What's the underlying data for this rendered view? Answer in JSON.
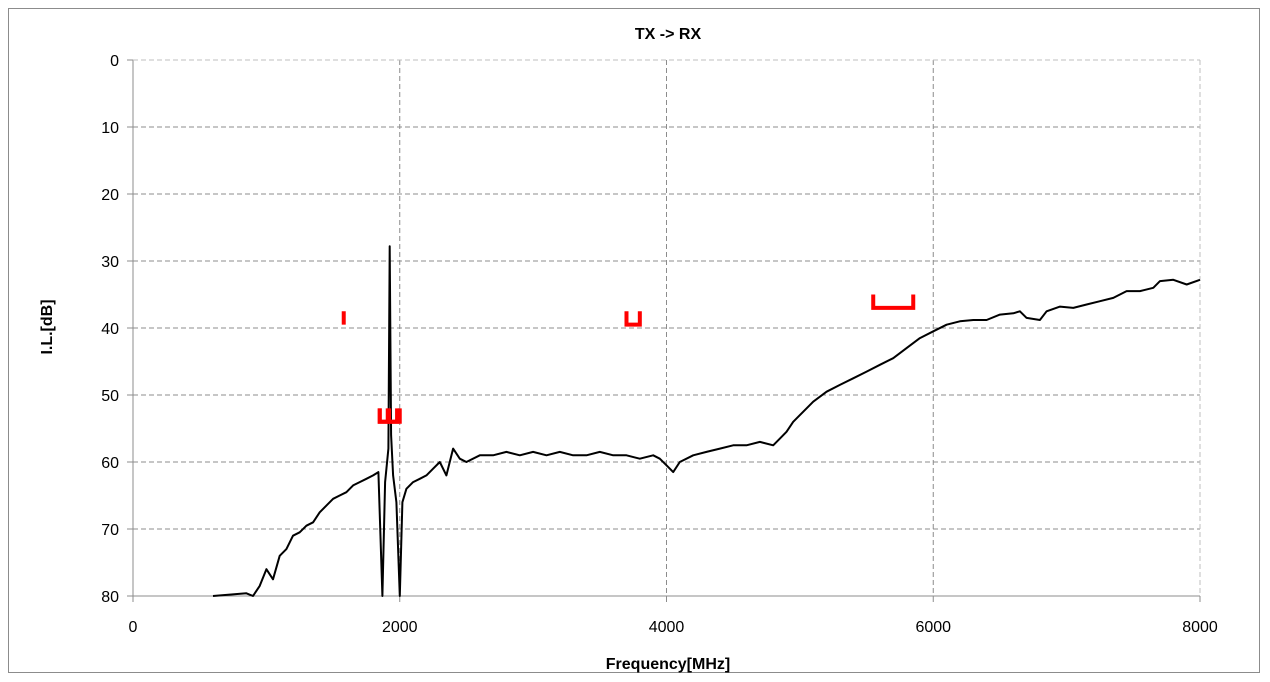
{
  "chart_data": {
    "type": "line",
    "title": "TX -> RX",
    "xlabel": "Frequency[MHz]",
    "ylabel": "I.L.[dB]",
    "xlim": [
      0,
      8000
    ],
    "ylim": [
      0,
      80
    ],
    "y_inverted": true,
    "grid": true,
    "x_ticks": [
      "0",
      "2000",
      "4000",
      "6000",
      "8000"
    ],
    "y_ticks": [
      "0",
      "10",
      "20",
      "30",
      "40",
      "50",
      "60",
      "70",
      "80"
    ],
    "series": [
      {
        "color": "#000000",
        "points": [
          [
            600,
            80
          ],
          [
            850,
            79.6
          ],
          [
            900,
            80
          ],
          [
            950,
            78.5
          ],
          [
            1000,
            76
          ],
          [
            1050,
            77.5
          ],
          [
            1100,
            74
          ],
          [
            1150,
            73
          ],
          [
            1200,
            71
          ],
          [
            1250,
            70.5
          ],
          [
            1300,
            69.5
          ],
          [
            1350,
            69
          ],
          [
            1400,
            67.5
          ],
          [
            1450,
            66.5
          ],
          [
            1500,
            65.5
          ],
          [
            1550,
            65
          ],
          [
            1600,
            64.5
          ],
          [
            1650,
            63.5
          ],
          [
            1700,
            63
          ],
          [
            1750,
            62.5
          ],
          [
            1800,
            62
          ],
          [
            1840,
            61.5
          ],
          [
            1870,
            80
          ],
          [
            1890,
            63
          ],
          [
            1915,
            58
          ],
          [
            1925,
            27.8
          ],
          [
            1935,
            56
          ],
          [
            1950,
            62
          ],
          [
            1975,
            66
          ],
          [
            2000,
            80
          ],
          [
            2020,
            66
          ],
          [
            2050,
            64
          ],
          [
            2100,
            63
          ],
          [
            2150,
            62.5
          ],
          [
            2200,
            62
          ],
          [
            2250,
            61
          ],
          [
            2300,
            60
          ],
          [
            2350,
            62
          ],
          [
            2400,
            58
          ],
          [
            2450,
            59.5
          ],
          [
            2500,
            60
          ],
          [
            2600,
            59
          ],
          [
            2700,
            59
          ],
          [
            2800,
            58.5
          ],
          [
            2900,
            59
          ],
          [
            3000,
            58.5
          ],
          [
            3100,
            59
          ],
          [
            3200,
            58.5
          ],
          [
            3300,
            59
          ],
          [
            3400,
            59
          ],
          [
            3500,
            58.5
          ],
          [
            3600,
            59
          ],
          [
            3700,
            59
          ],
          [
            3800,
            59.5
          ],
          [
            3900,
            59
          ],
          [
            3950,
            59.5
          ],
          [
            4000,
            60.5
          ],
          [
            4050,
            61.5
          ],
          [
            4100,
            60
          ],
          [
            4200,
            59
          ],
          [
            4300,
            58.5
          ],
          [
            4400,
            58
          ],
          [
            4500,
            57.5
          ],
          [
            4600,
            57.5
          ],
          [
            4700,
            57
          ],
          [
            4800,
            57.5
          ],
          [
            4850,
            56.5
          ],
          [
            4900,
            55.5
          ],
          [
            4950,
            54
          ],
          [
            5000,
            53
          ],
          [
            5050,
            52
          ],
          [
            5100,
            51
          ],
          [
            5200,
            49.5
          ],
          [
            5300,
            48.5
          ],
          [
            5400,
            47.5
          ],
          [
            5500,
            46.5
          ],
          [
            5600,
            45.5
          ],
          [
            5700,
            44.5
          ],
          [
            5800,
            43
          ],
          [
            5900,
            41.5
          ],
          [
            6000,
            40.5
          ],
          [
            6100,
            39.5
          ],
          [
            6200,
            39
          ],
          [
            6300,
            38.8
          ],
          [
            6400,
            38.8
          ],
          [
            6500,
            38
          ],
          [
            6600,
            37.8
          ],
          [
            6650,
            37.5
          ],
          [
            6700,
            38.5
          ],
          [
            6800,
            38.8
          ],
          [
            6850,
            37.5
          ],
          [
            6950,
            36.8
          ],
          [
            7050,
            37
          ],
          [
            7150,
            36.5
          ],
          [
            7250,
            36
          ],
          [
            7350,
            35.5
          ],
          [
            7450,
            34.5
          ],
          [
            7550,
            34.5
          ],
          [
            7650,
            34
          ],
          [
            7700,
            33
          ],
          [
            7800,
            32.8
          ],
          [
            7900,
            33.5
          ],
          [
            8000,
            32.8
          ]
        ]
      }
    ],
    "spec_markers": [
      {
        "color": "#ff0000",
        "x_start": 1580,
        "x_end": 1580,
        "y_bottom": 39.5,
        "height": 2
      },
      {
        "color": "#ff0000",
        "x_start": 1850,
        "x_end": 2000,
        "y_bottom": 54,
        "height": 2
      },
      {
        "color": "#ff0000",
        "x_start": 1850,
        "x_end": 1910,
        "y_bottom": 54,
        "height": 2
      },
      {
        "color": "#ff0000",
        "x_start": 1920,
        "x_end": 1980,
        "y_bottom": 54,
        "height": 2
      },
      {
        "color": "#ff0000",
        "x_start": 3700,
        "x_end": 3800,
        "y_bottom": 39.5,
        "height": 2
      },
      {
        "color": "#ff0000",
        "x_start": 5550,
        "x_end": 5850,
        "y_bottom": 37,
        "height": 2
      }
    ]
  }
}
